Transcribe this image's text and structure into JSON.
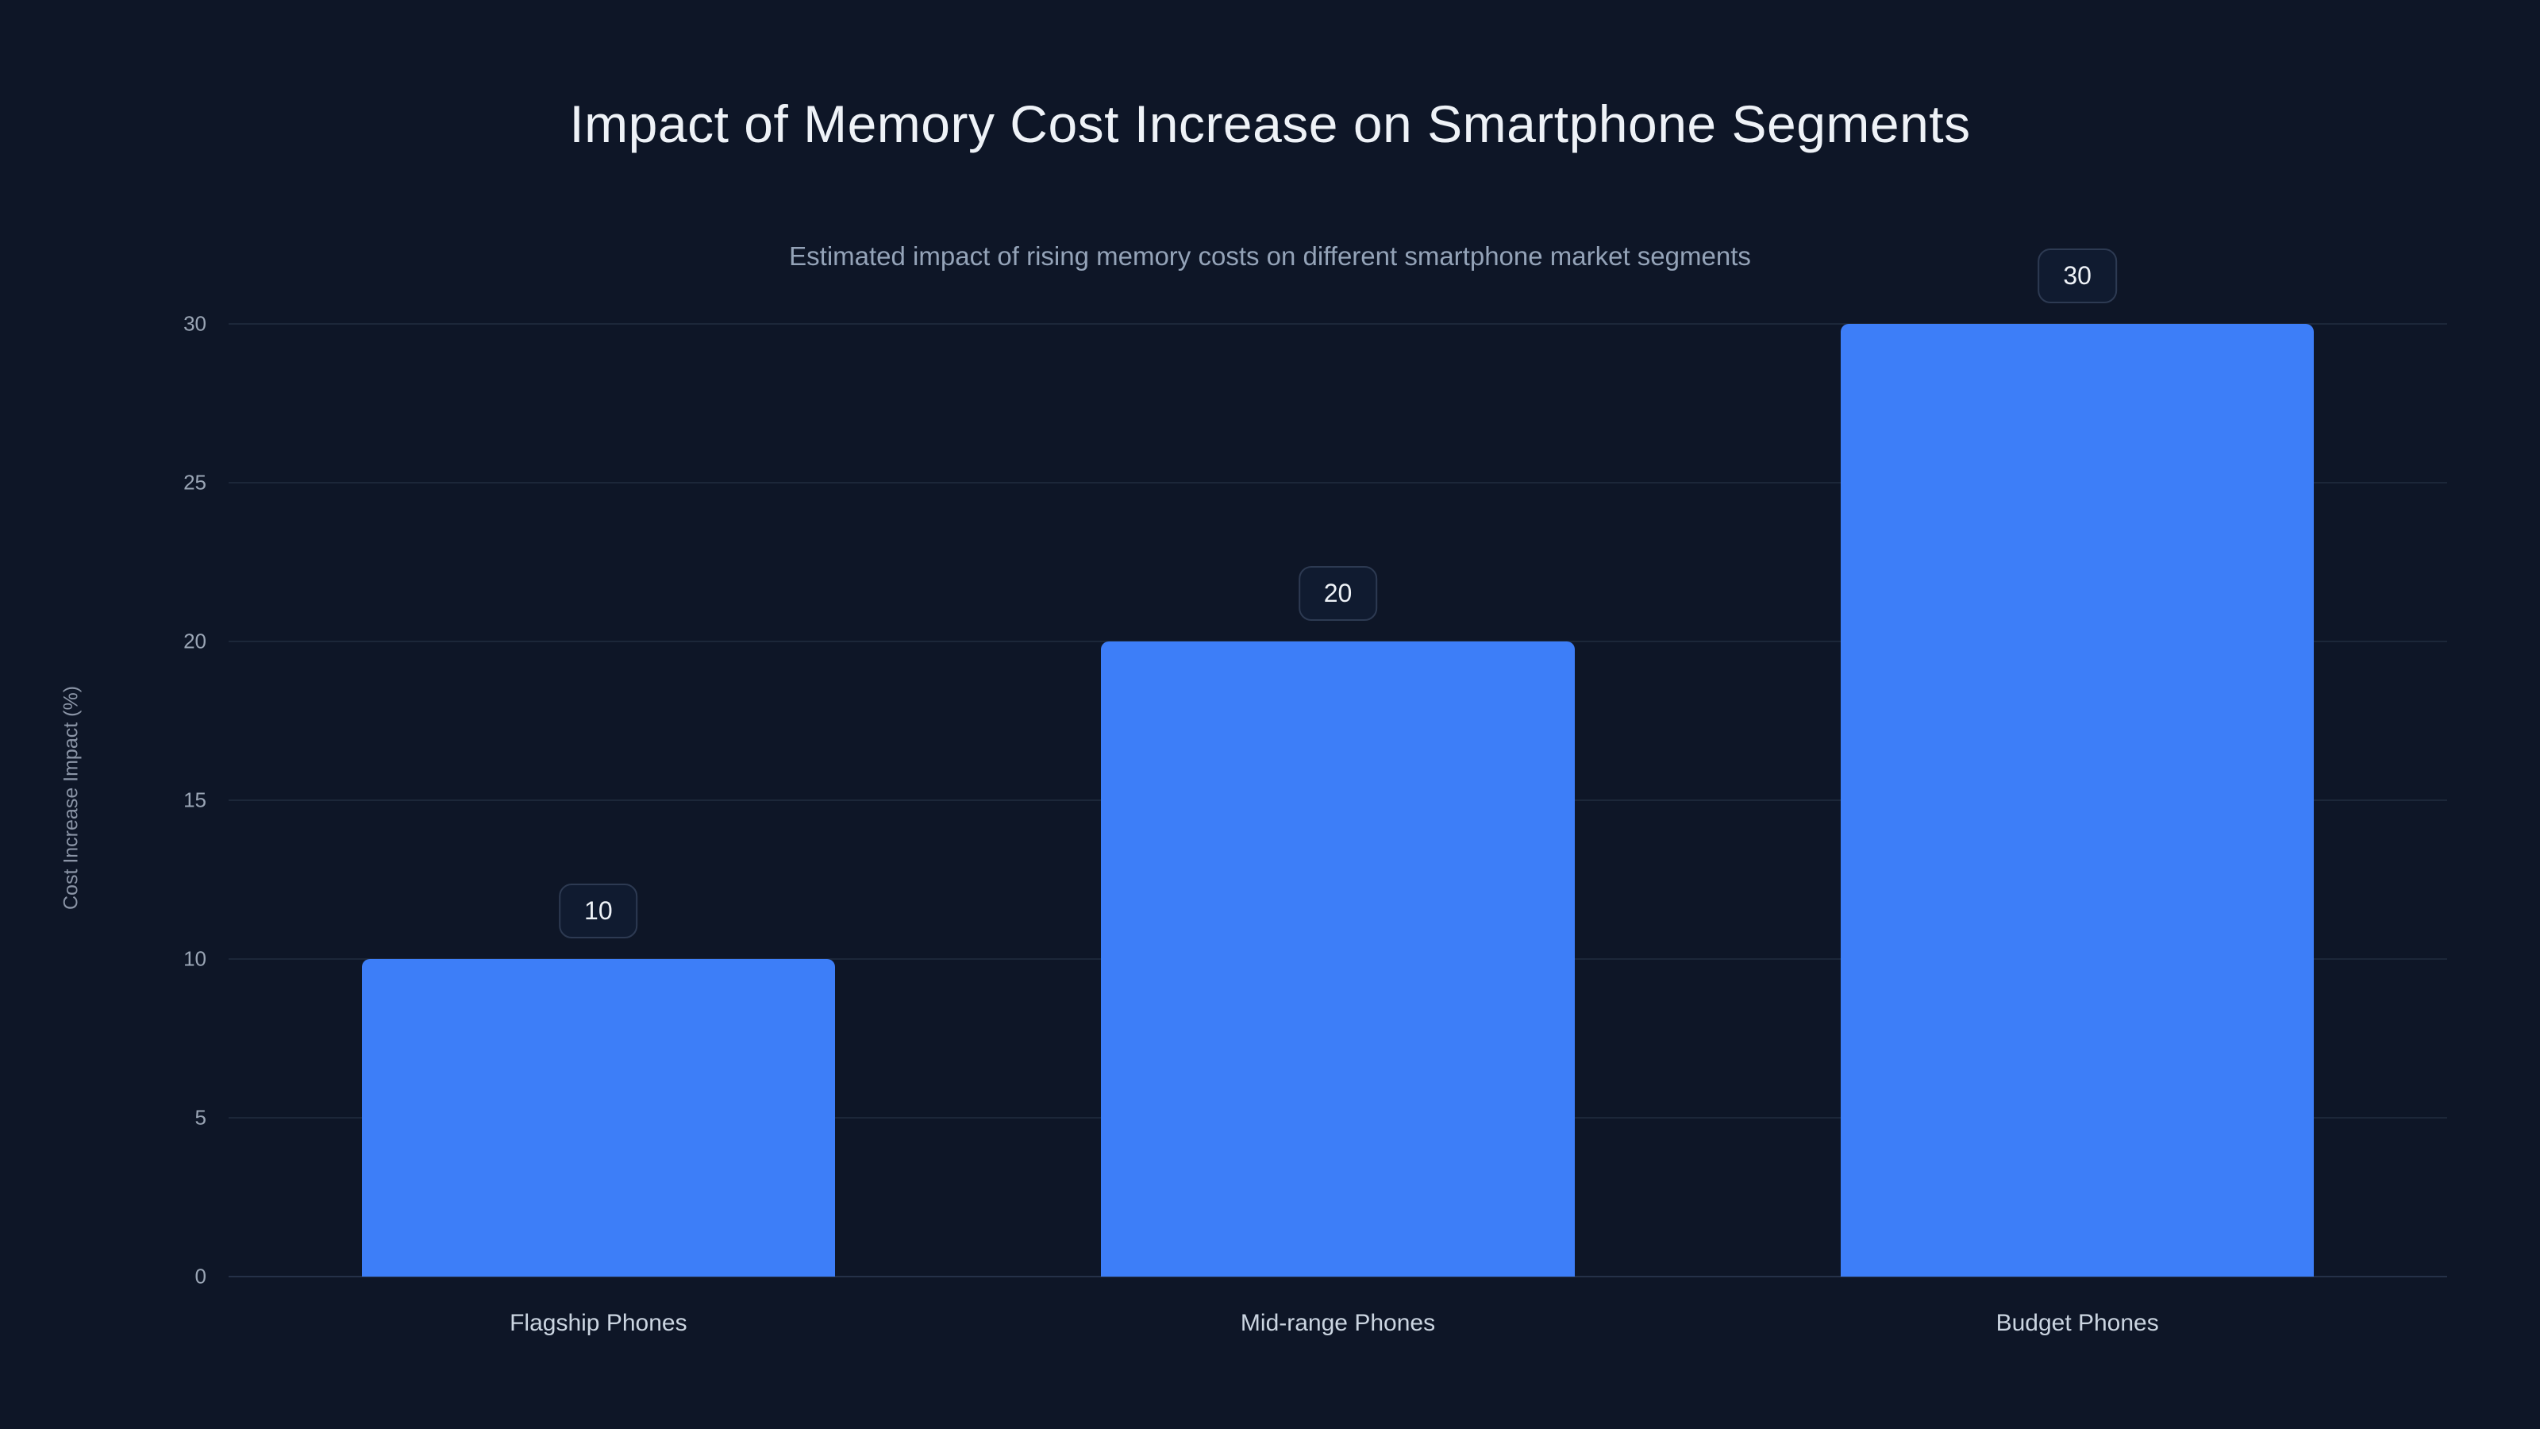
{
  "chart_data": {
    "type": "bar",
    "title": "Impact of Memory Cost Increase on Smartphone Segments",
    "subtitle": "Estimated impact of rising memory costs on different smartphone market segments",
    "categories": [
      "Flagship Phones",
      "Mid-range Phones",
      "Budget Phones"
    ],
    "values": [
      10,
      20,
      30
    ],
    "value_labels": [
      "10",
      "20",
      "30"
    ],
    "xlabel": "",
    "ylabel": "Cost Increase Impact (%)",
    "ylim": [
      0,
      30
    ],
    "yticks": [
      0,
      5,
      10,
      15,
      20,
      25,
      30
    ],
    "grid": "horizontal",
    "legend": "none",
    "colors": {
      "background": "#0e1627",
      "bar": "#3d7ef8",
      "gridline": "#1c2739",
      "title_text": "#eef2f7",
      "subtitle_text": "#94a3b8",
      "axis_text": "#9aa5b5",
      "badge_border": "#2d3a52",
      "badge_background": "#101b30"
    }
  }
}
